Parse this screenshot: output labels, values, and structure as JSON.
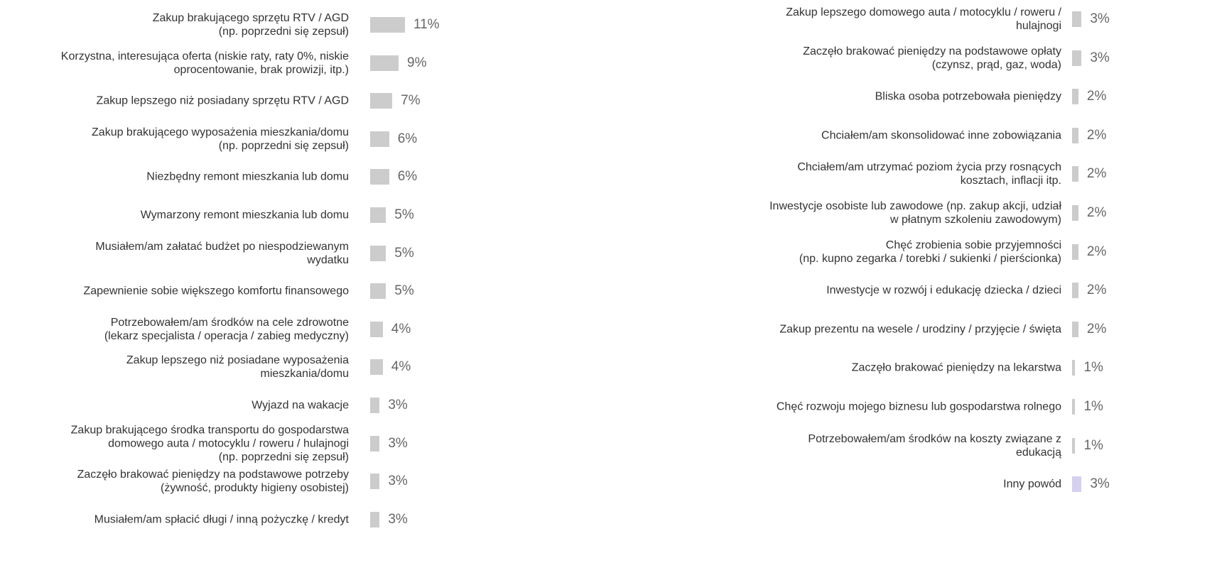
{
  "chart_data": [
    {
      "type": "bar",
      "orientation": "horizontal",
      "color": "#cccccc",
      "categories": [
        "Zakup brakującego sprzętu RTV / AGD\n(np. poprzedni się zepsuł)",
        "Korzystna, interesująca oferta (niskie raty, raty 0%, niskie\noprocentowanie, brak prowizji, itp.)",
        "Zakup lepszego niż posiadany sprzętu RTV / AGD",
        "Zakup brakującego wyposażenia mieszkania/domu\n(np. poprzedni się zepsuł)",
        "Niezbędny remont mieszkania lub domu",
        "Wymarzony remont mieszkania lub domu",
        "Musiałem/am załatać budżet po niespodziewanym\nwydatku",
        "Zapewnienie sobie większego komfortu finansowego",
        "Potrzebowałem/am środków na cele zdrowotne\n(lekarz specjalista / operacja / zabieg medyczny)",
        "Zakup lepszego niż posiadane wyposażenia\nmieszkania/domu",
        "Wyjazd na wakacje",
        "Zakup brakującego środka transportu do gospodarstwa\ndomowego auta / motocyklu / roweru / hulajnogi\n(np. poprzedni się zepsuł)",
        "Zaczęło brakować pieniędzy na podstawowe potrzeby\n(żywność, produkty higieny osobistej)",
        "Musiałem/am spłacić długi / inną pożyczkę / kredyt"
      ],
      "values": [
        11,
        9,
        7,
        6,
        6,
        5,
        5,
        5,
        4,
        4,
        3,
        3,
        3,
        3
      ],
      "value_labels": [
        "11%",
        "9%",
        "7%",
        "6%",
        "6%",
        "5%",
        "5%",
        "5%",
        "4%",
        "4%",
        "3%",
        "3%",
        "3%",
        "3%"
      ]
    },
    {
      "type": "bar",
      "orientation": "horizontal",
      "colors": [
        "#cccccc",
        "#cccccc",
        "#cccccc",
        "#cccccc",
        "#cccccc",
        "#cccccc",
        "#cccccc",
        "#cccccc",
        "#cccccc",
        "#cccccc",
        "#cccccc",
        "#cccccc",
        "#d4d0ee"
      ],
      "categories": [
        "Zakup lepszego domowego auta / motocyklu / roweru /\nhulajnogi",
        "Zaczęło brakować pieniędzy na podstawowe opłaty\n(czynsz, prąd, gaz, woda)",
        "Bliska osoba potrzebowała pieniędzy",
        "Chciałem/am skonsolidować inne zobowiązania",
        "Chciałem/am utrzymać poziom życia przy rosnących\nkosztach, inflacji itp.",
        "Inwestycje osobiste lub zawodowe (np. zakup akcji, udział\nw płatnym szkoleniu zawodowym)",
        "Chęć zrobienia sobie przyjemności\n(np. kupno zegarka / torebki / sukienki / pierścionka)",
        "Inwestycje w rozwój i edukację dziecka / dzieci",
        "Zakup prezentu na wesele / urodziny / przyjęcie / święta",
        "Zaczęło brakować pieniędzy na lekarstwa",
        "Chęć rozwoju mojego biznesu lub gospodarstwa rolnego",
        "Potrzebowałem/am środków na koszty związane z\nedukacją",
        "Inny powód"
      ],
      "values": [
        3,
        3,
        2,
        2,
        2,
        2,
        2,
        2,
        2,
        1,
        1,
        1,
        3
      ],
      "value_labels": [
        "3%",
        "3%",
        "2%",
        "2%",
        "2%",
        "2%",
        "2%",
        "2%",
        "2%",
        "1%",
        "1%",
        "1%",
        "3%"
      ]
    }
  ]
}
